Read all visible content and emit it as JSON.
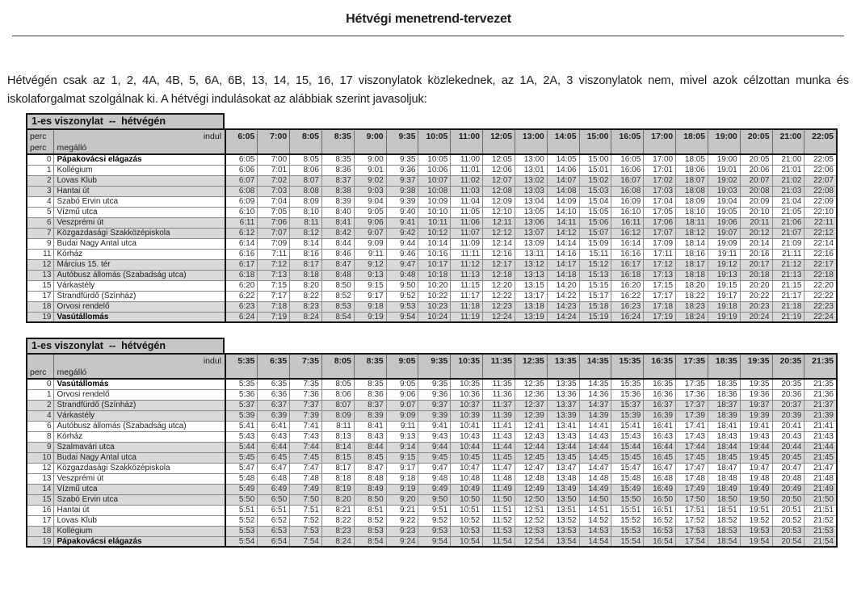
{
  "document": {
    "title": "Hétvégi menetrend-tervezet",
    "intro": "Hétvégén csak az 1, 2, 4A, 4B, 5, 6A, 6B, 13, 14, 15, 16, 17 viszonylatok közlekednek, az 1A, 2A, 3 viszonylatok nem, mivel azok célzottan munka és iskolaforgalmat szolgálnak ki. A hétvégi indulásokat az alábbiak szerint javasoljuk:"
  },
  "colors": {
    "header_fill": "#c6c6c6",
    "departure_fill": "#f6c195",
    "zebra_fill": "#d9d9d9",
    "border_dark": "#161616",
    "border_light": "#8a8a8a"
  },
  "tables": [
    {
      "title": "1-es viszonylat  --  hétvégén",
      "corner": {
        "perc_top": "perc",
        "indul": "indul",
        "perc_bottom": "perc",
        "megallo": "megálló"
      },
      "departures": [
        "6:05",
        "7:00",
        "8:05",
        "8:35",
        "9:00",
        "9:35",
        "10:05",
        "11:00",
        "12:05",
        "13:00",
        "14:05",
        "15:00",
        "16:05",
        "17:00",
        "18:05",
        "19:00",
        "20:05",
        "21:00",
        "22:05"
      ],
      "rows": [
        {
          "perc": "0",
          "stop": "Pápakovácsi elágazás",
          "bold": true,
          "times": [
            "6:05",
            "7:00",
            "8:05",
            "8:35",
            "9:00",
            "9:35",
            "10:05",
            "11:00",
            "12:05",
            "13:00",
            "14:05",
            "15:00",
            "16:05",
            "17:00",
            "18:05",
            "19:00",
            "20:05",
            "21:00",
            "22:05"
          ]
        },
        {
          "perc": "1",
          "stop": "Kollégium",
          "bold": false,
          "times": [
            "6:06",
            "7:01",
            "8:06",
            "8:36",
            "9:01",
            "9:36",
            "10:06",
            "11:01",
            "12:06",
            "13:01",
            "14:06",
            "15:01",
            "16:06",
            "17:01",
            "18:06",
            "19:01",
            "20:06",
            "21:01",
            "22:06"
          ]
        },
        {
          "perc": "2",
          "stop": "Lovas Klub",
          "bold": false,
          "times": [
            "6:07",
            "7:02",
            "8:07",
            "8:37",
            "9:02",
            "9:37",
            "10:07",
            "11:02",
            "12:07",
            "13:02",
            "14:07",
            "15:02",
            "16:07",
            "17:02",
            "18:07",
            "19:02",
            "20:07",
            "21:02",
            "22:07"
          ]
        },
        {
          "perc": "3",
          "stop": "Hantai út",
          "bold": false,
          "times": [
            "6:08",
            "7:03",
            "8:08",
            "8:38",
            "9:03",
            "9:38",
            "10:08",
            "11:03",
            "12:08",
            "13:03",
            "14:08",
            "15:03",
            "16:08",
            "17:03",
            "18:08",
            "19:03",
            "20:08",
            "21:03",
            "22:08"
          ]
        },
        {
          "perc": "4",
          "stop": "Szabó Ervin utca",
          "bold": false,
          "times": [
            "6:09",
            "7:04",
            "8:09",
            "8:39",
            "9:04",
            "9:39",
            "10:09",
            "11:04",
            "12:09",
            "13:04",
            "14:09",
            "15:04",
            "16:09",
            "17:04",
            "18:09",
            "19:04",
            "20:09",
            "21:04",
            "22:09"
          ]
        },
        {
          "perc": "5",
          "stop": "Vízmű utca",
          "bold": false,
          "times": [
            "6:10",
            "7:05",
            "8:10",
            "8:40",
            "9:05",
            "9:40",
            "10:10",
            "11:05",
            "12:10",
            "13:05",
            "14:10",
            "15:05",
            "16:10",
            "17:05",
            "18:10",
            "19:05",
            "20:10",
            "21:05",
            "22:10"
          ]
        },
        {
          "perc": "6",
          "stop": "Veszprémi út",
          "bold": false,
          "times": [
            "6:11",
            "7:06",
            "8:11",
            "8:41",
            "9:06",
            "9:41",
            "10:11",
            "11:06",
            "12:11",
            "13:06",
            "14:11",
            "15:06",
            "16:11",
            "17:06",
            "18:11",
            "19:06",
            "20:11",
            "21:06",
            "22:11"
          ]
        },
        {
          "perc": "7",
          "stop": "Közgazdasági Szakközépiskola",
          "bold": false,
          "times": [
            "6:12",
            "7:07",
            "8:12",
            "8:42",
            "9:07",
            "9:42",
            "10:12",
            "11:07",
            "12:12",
            "13:07",
            "14:12",
            "15:07",
            "16:12",
            "17:07",
            "18:12",
            "19:07",
            "20:12",
            "21:07",
            "22:12"
          ]
        },
        {
          "perc": "9",
          "stop": "Budai Nagy Antal utca",
          "bold": false,
          "times": [
            "6:14",
            "7:09",
            "8:14",
            "8:44",
            "9:09",
            "9:44",
            "10:14",
            "11:09",
            "12:14",
            "13:09",
            "14:14",
            "15:09",
            "16:14",
            "17:09",
            "18:14",
            "19:09",
            "20:14",
            "21:09",
            "22:14"
          ]
        },
        {
          "perc": "11",
          "stop": "Kórház",
          "bold": false,
          "times": [
            "6:16",
            "7:11",
            "8:16",
            "8:46",
            "9:11",
            "9:46",
            "10:16",
            "11:11",
            "12:16",
            "13:11",
            "14:16",
            "15:11",
            "16:16",
            "17:11",
            "18:16",
            "19:11",
            "20:16",
            "21:11",
            "22:16"
          ]
        },
        {
          "perc": "12",
          "stop": "Március 15. tér",
          "bold": false,
          "times": [
            "6:17",
            "7:12",
            "8:17",
            "8:47",
            "9:12",
            "9:47",
            "10:17",
            "11:12",
            "12:17",
            "13:12",
            "14:17",
            "15:12",
            "16:17",
            "17:12",
            "18:17",
            "19:12",
            "20:17",
            "21:12",
            "22:17"
          ]
        },
        {
          "perc": "13",
          "stop": "Autóbusz állomás (Szabadság utca)",
          "bold": false,
          "times": [
            "6:18",
            "7:13",
            "8:18",
            "8:48",
            "9:13",
            "9:48",
            "10:18",
            "11:13",
            "12:18",
            "13:13",
            "14:18",
            "15:13",
            "16:18",
            "17:13",
            "18:18",
            "19:13",
            "20:18",
            "21:13",
            "22:18"
          ]
        },
        {
          "perc": "15",
          "stop": "Várkastély",
          "bold": false,
          "times": [
            "6:20",
            "7:15",
            "8:20",
            "8:50",
            "9:15",
            "9:50",
            "10:20",
            "11:15",
            "12:20",
            "13:15",
            "14:20",
            "15:15",
            "16:20",
            "17:15",
            "18:20",
            "19:15",
            "20:20",
            "21:15",
            "22:20"
          ]
        },
        {
          "perc": "17",
          "stop": "Strandfürdő (Színház)",
          "bold": false,
          "times": [
            "6:22",
            "7:17",
            "8:22",
            "8:52",
            "9:17",
            "9:52",
            "10:22",
            "11:17",
            "12:22",
            "13:17",
            "14:22",
            "15:17",
            "16:22",
            "17:17",
            "18:22",
            "19:17",
            "20:22",
            "21:17",
            "22:22"
          ]
        },
        {
          "perc": "18",
          "stop": "Orvosi rendelő",
          "bold": false,
          "times": [
            "6:23",
            "7:18",
            "8:23",
            "8:53",
            "9:18",
            "9:53",
            "10:23",
            "11:18",
            "12:23",
            "13:18",
            "14:23",
            "15:18",
            "16:23",
            "17:18",
            "18:23",
            "19:18",
            "20:23",
            "21:18",
            "22:23"
          ]
        },
        {
          "perc": "19",
          "stop": "Vasútállomás",
          "bold": true,
          "times": [
            "6:24",
            "7:19",
            "8:24",
            "8:54",
            "9:19",
            "9:54",
            "10:24",
            "11:19",
            "12:24",
            "13:19",
            "14:24",
            "15:19",
            "16:24",
            "17:19",
            "18:24",
            "19:19",
            "20:24",
            "21:19",
            "22:24"
          ]
        }
      ]
    },
    {
      "title": "1-es viszonylat  --  hétvégén",
      "corner": {
        "perc_top": "",
        "indul": "indul",
        "perc_bottom": "perc",
        "megallo": "megálló"
      },
      "departures": [
        "5:35",
        "6:35",
        "7:35",
        "8:05",
        "8:35",
        "9:05",
        "9:35",
        "10:35",
        "11:35",
        "12:35",
        "13:35",
        "14:35",
        "15:35",
        "16:35",
        "17:35",
        "18:35",
        "19:35",
        "20:35",
        "21:35"
      ],
      "rows": [
        {
          "perc": "0",
          "stop": "Vasútállomás",
          "bold": true,
          "times": [
            "5:35",
            "6:35",
            "7:35",
            "8:05",
            "8:35",
            "9:05",
            "9:35",
            "10:35",
            "11:35",
            "12:35",
            "13:35",
            "14:35",
            "15:35",
            "16:35",
            "17:35",
            "18:35",
            "19:35",
            "20:35",
            "21:35"
          ]
        },
        {
          "perc": "1",
          "stop": "Orvosi rendelő",
          "bold": false,
          "times": [
            "5:36",
            "6:36",
            "7:36",
            "8:06",
            "8:36",
            "9:06",
            "9:36",
            "10:36",
            "11:36",
            "12:36",
            "13:36",
            "14:36",
            "15:36",
            "16:36",
            "17:36",
            "18:36",
            "19:36",
            "20:36",
            "21:36"
          ]
        },
        {
          "perc": "2",
          "stop": "Strandfürdő (Színház)",
          "bold": false,
          "times": [
            "5:37",
            "6:37",
            "7:37",
            "8:07",
            "8:37",
            "9:07",
            "9:37",
            "10:37",
            "11:37",
            "12:37",
            "13:37",
            "14:37",
            "15:37",
            "16:37",
            "17:37",
            "18:37",
            "19:37",
            "20:37",
            "21:37"
          ]
        },
        {
          "perc": "4",
          "stop": "Várkastély",
          "bold": false,
          "times": [
            "5:39",
            "6:39",
            "7:39",
            "8:09",
            "8:39",
            "9:09",
            "9:39",
            "10:39",
            "11:39",
            "12:39",
            "13:39",
            "14:39",
            "15:39",
            "16:39",
            "17:39",
            "18:39",
            "19:39",
            "20:39",
            "21:39"
          ]
        },
        {
          "perc": "6",
          "stop": "Autóbusz állomás (Szabadság utca)",
          "bold": false,
          "times": [
            "5:41",
            "6:41",
            "7:41",
            "8:11",
            "8:41",
            "9:11",
            "9:41",
            "10:41",
            "11:41",
            "12:41",
            "13:41",
            "14:41",
            "15:41",
            "16:41",
            "17:41",
            "18:41",
            "19:41",
            "20:41",
            "21:41"
          ]
        },
        {
          "perc": "8",
          "stop": "Kórház",
          "bold": false,
          "times": [
            "5:43",
            "6:43",
            "7:43",
            "8:13",
            "8:43",
            "9:13",
            "9:43",
            "10:43",
            "11:43",
            "12:43",
            "13:43",
            "14:43",
            "15:43",
            "16:43",
            "17:43",
            "18:43",
            "19:43",
            "20:43",
            "21:43"
          ]
        },
        {
          "perc": "9",
          "stop": "Szalmavári utca",
          "bold": false,
          "times": [
            "5:44",
            "6:44",
            "7:44",
            "8:14",
            "8:44",
            "9:14",
            "9:44",
            "10:44",
            "11:44",
            "12:44",
            "13:44",
            "14:44",
            "15:44",
            "16:44",
            "17:44",
            "18:44",
            "19:44",
            "20:44",
            "21:44"
          ]
        },
        {
          "perc": "10",
          "stop": "Budai Nagy Antal utca",
          "bold": false,
          "times": [
            "5:45",
            "6:45",
            "7:45",
            "8:15",
            "8:45",
            "9:15",
            "9:45",
            "10:45",
            "11:45",
            "12:45",
            "13:45",
            "14:45",
            "15:45",
            "16:45",
            "17:45",
            "18:45",
            "19:45",
            "20:45",
            "21:45"
          ]
        },
        {
          "perc": "12",
          "stop": "Közgazdasági Szakközépiskola",
          "bold": false,
          "times": [
            "5:47",
            "6:47",
            "7:47",
            "8:17",
            "8:47",
            "9:17",
            "9:47",
            "10:47",
            "11:47",
            "12:47",
            "13:47",
            "14:47",
            "15:47",
            "16:47",
            "17:47",
            "18:47",
            "19:47",
            "20:47",
            "21:47"
          ]
        },
        {
          "perc": "13",
          "stop": "Veszprémi út",
          "bold": false,
          "times": [
            "5:48",
            "6:48",
            "7:48",
            "8:18",
            "8:48",
            "9:18",
            "9:48",
            "10:48",
            "11:48",
            "12:48",
            "13:48",
            "14:48",
            "15:48",
            "16:48",
            "17:48",
            "18:48",
            "19:48",
            "20:48",
            "21:48"
          ]
        },
        {
          "perc": "14",
          "stop": "Vízmű utca",
          "bold": false,
          "times": [
            "5:49",
            "6:49",
            "7:49",
            "8:19",
            "8:49",
            "9:19",
            "9:49",
            "10:49",
            "11:49",
            "12:49",
            "13:49",
            "14:49",
            "15:49",
            "16:49",
            "17:49",
            "18:49",
            "19:49",
            "20:49",
            "21:49"
          ]
        },
        {
          "perc": "15",
          "stop": "Szabó Ervin utca",
          "bold": false,
          "times": [
            "5:50",
            "6:50",
            "7:50",
            "8:20",
            "8:50",
            "9:20",
            "9:50",
            "10:50",
            "11:50",
            "12:50",
            "13:50",
            "14:50",
            "15:50",
            "16:50",
            "17:50",
            "18:50",
            "19:50",
            "20:50",
            "21:50"
          ]
        },
        {
          "perc": "16",
          "stop": "Hantai út",
          "bold": false,
          "times": [
            "5:51",
            "6:51",
            "7:51",
            "8:21",
            "8:51",
            "9:21",
            "9:51",
            "10:51",
            "11:51",
            "12:51",
            "13:51",
            "14:51",
            "15:51",
            "16:51",
            "17:51",
            "18:51",
            "19:51",
            "20:51",
            "21:51"
          ]
        },
        {
          "perc": "17",
          "stop": "Lovas Klub",
          "bold": false,
          "times": [
            "5:52",
            "6:52",
            "7:52",
            "8:22",
            "8:52",
            "9:22",
            "9:52",
            "10:52",
            "11:52",
            "12:52",
            "13:52",
            "14:52",
            "15:52",
            "16:52",
            "17:52",
            "18:52",
            "19:52",
            "20:52",
            "21:52"
          ]
        },
        {
          "perc": "18",
          "stop": "Kollégium",
          "bold": false,
          "times": [
            "5:53",
            "6:53",
            "7:53",
            "8:23",
            "8:53",
            "9:23",
            "9:53",
            "10:53",
            "11:53",
            "12:53",
            "13:53",
            "14:53",
            "15:53",
            "16:53",
            "17:53",
            "18:53",
            "19:53",
            "20:53",
            "21:53"
          ]
        },
        {
          "perc": "19",
          "stop": "Pápakovácsi elágazás",
          "bold": true,
          "times": [
            "5:54",
            "6:54",
            "7:54",
            "8:24",
            "8:54",
            "9:24",
            "9:54",
            "10:54",
            "11:54",
            "12:54",
            "13:54",
            "14:54",
            "15:54",
            "16:54",
            "17:54",
            "18:54",
            "19:54",
            "20:54",
            "21:54"
          ]
        }
      ]
    }
  ]
}
